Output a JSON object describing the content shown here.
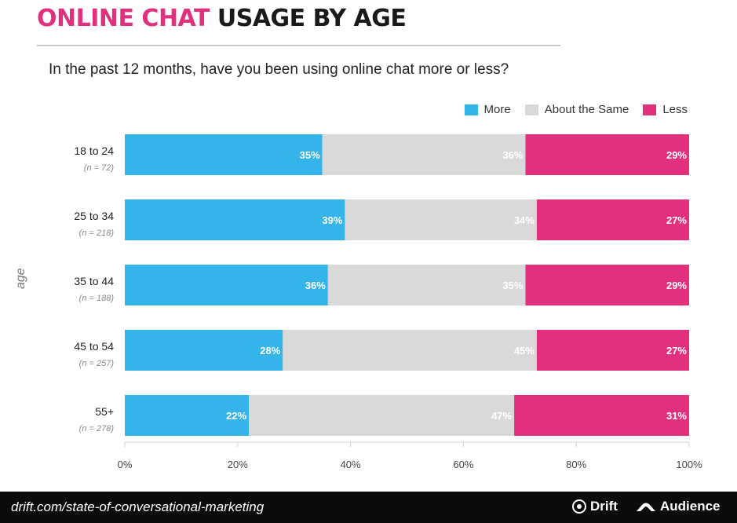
{
  "header": {
    "title_accent": "ONLINE CHAT",
    "title_rest": "USAGE BY AGE",
    "subtitle": "In the past 12 months, have you been using online chat more or less?"
  },
  "colors": {
    "accent": "#e2307f",
    "more": "#35b4ea",
    "same": "#d9d9d9",
    "less": "#e2307f"
  },
  "footer": {
    "url": "drift.com/state-of-conversational-marketing",
    "brand1": "Drift",
    "brand2": "Audience",
    "brand1_icon": "drift-logo-icon",
    "brand2_icon": "audience-logo-icon"
  },
  "chart_data": {
    "type": "bar",
    "orientation": "horizontal",
    "stacked": true,
    "ylabel": "age",
    "xlim": [
      0,
      100
    ],
    "xticks": [
      "0%",
      "20%",
      "40%",
      "60%",
      "80%",
      "100%"
    ],
    "legend": {
      "placement": "top-right"
    },
    "categories": [
      "18 to 24",
      "25 to 34",
      "35 to 44",
      "45 to 54",
      "55+"
    ],
    "sample_sizes": [
      "(n = 72)",
      "(n = 218)",
      "(n = 188)",
      "(n = 257)",
      "(n = 278)"
    ],
    "series": [
      {
        "name": "More",
        "color": "#35b4ea",
        "values": [
          35,
          39,
          36,
          28,
          22
        ],
        "labels": [
          "35%",
          "39%",
          "36%",
          "28%",
          "22%"
        ]
      },
      {
        "name": "About the Same",
        "color": "#d9d9d9",
        "values": [
          36,
          34,
          35,
          45,
          47
        ],
        "labels": [
          "36%",
          "34%",
          "35%",
          "45%",
          "47%"
        ]
      },
      {
        "name": "Less",
        "color": "#e2307f",
        "values": [
          29,
          27,
          29,
          27,
          31
        ],
        "labels": [
          "29%",
          "27%",
          "29%",
          "27%",
          "31%"
        ]
      }
    ]
  }
}
